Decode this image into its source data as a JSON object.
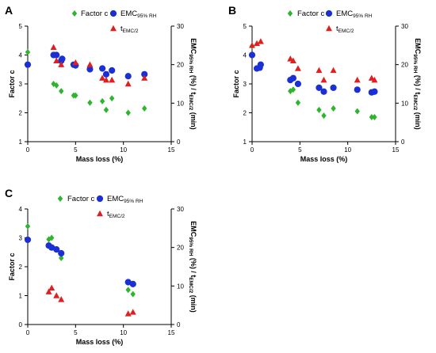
{
  "chart_data": [
    {
      "type": "scatter",
      "panel_label": "A",
      "xlabel": "Mass loss (%)",
      "ylabel_left": "Factor c",
      "ylabel_right_parts": [
        "EMC",
        "95% RH",
        " (%) / t",
        "EMC/2",
        " (min)"
      ],
      "xlim": [
        0,
        15
      ],
      "ylim_left": [
        1,
        5
      ],
      "ylim_right": [
        0,
        30
      ],
      "x_ticks": [
        "0",
        "5",
        "10",
        "15"
      ],
      "y_left_ticks": [
        "1",
        "2",
        "3",
        "4",
        "5"
      ],
      "y_right_ticks": [
        "0",
        "10",
        "20",
        "30"
      ],
      "series": [
        {
          "name_parts": [
            "Factor c",
            ""
          ],
          "axis": "left",
          "marker": "diamond",
          "color": "#2db52d",
          "points": [
            [
              0,
              4.1
            ],
            [
              2.7,
              3.0
            ],
            [
              3.0,
              2.95
            ],
            [
              3.5,
              2.75
            ],
            [
              4.8,
              2.6
            ],
            [
              5.0,
              2.6
            ],
            [
              6.5,
              2.35
            ],
            [
              7.8,
              2.4
            ],
            [
              8.2,
              2.1
            ],
            [
              8.8,
              2.5
            ],
            [
              10.5,
              2.0
            ],
            [
              12.2,
              2.15
            ]
          ]
        },
        {
          "name_parts": [
            "EMC",
            "95% RH"
          ],
          "axis": "right",
          "marker": "circle",
          "color": "#1a2fd4",
          "points": [
            [
              0,
              20.0
            ],
            [
              2.7,
              22.5
            ],
            [
              3.0,
              22.5
            ],
            [
              3.5,
              21.0
            ],
            [
              3.6,
              21.5
            ],
            [
              4.8,
              20.0
            ],
            [
              5.0,
              19.8
            ],
            [
              6.5,
              18.8
            ],
            [
              7.8,
              19.0
            ],
            [
              8.2,
              17.5
            ],
            [
              8.8,
              18.5
            ],
            [
              10.5,
              17.0
            ],
            [
              12.2,
              17.5
            ]
          ]
        },
        {
          "name_parts": [
            "t",
            "EMC/2"
          ],
          "axis": "right",
          "marker": "triangle",
          "color": "#e02020",
          "points": [
            [
              2.7,
              24.5
            ],
            [
              3.0,
              21.0
            ],
            [
              3.5,
              20.0
            ],
            [
              5.0,
              20.5
            ],
            [
              6.5,
              20.0
            ],
            [
              7.8,
              16.5
            ],
            [
              8.2,
              16.0
            ],
            [
              8.8,
              16.0
            ],
            [
              10.5,
              15.0
            ],
            [
              12.2,
              16.5
            ]
          ]
        }
      ]
    },
    {
      "type": "scatter",
      "panel_label": "B",
      "xlabel": "Mass loss (%)",
      "ylabel_left": "Factor c",
      "ylabel_right_parts": [
        "EMC",
        "95% RH",
        " (%) / t",
        "EMC/2",
        " (min)"
      ],
      "xlim": [
        0,
        15
      ],
      "ylim_left": [
        1,
        5
      ],
      "ylim_right": [
        0,
        30
      ],
      "x_ticks": [
        "0",
        "5",
        "10",
        "15"
      ],
      "y_left_ticks": [
        "1",
        "2",
        "3",
        "4",
        "5"
      ],
      "y_right_ticks": [
        "0",
        "10",
        "20",
        "30"
      ],
      "series": [
        {
          "name_parts": [
            "Factor c",
            ""
          ],
          "axis": "left",
          "marker": "diamond",
          "color": "#2db52d",
          "points": [
            [
              0,
              4.3
            ],
            [
              4.0,
              2.75
            ],
            [
              4.3,
              2.8
            ],
            [
              4.8,
              2.35
            ],
            [
              7.0,
              2.1
            ],
            [
              7.5,
              1.9
            ],
            [
              8.5,
              2.15
            ],
            [
              11.0,
              2.05
            ],
            [
              12.5,
              1.85
            ],
            [
              12.8,
              1.85
            ]
          ]
        },
        {
          "name_parts": [
            "EMC",
            "95% RH"
          ],
          "axis": "right",
          "marker": "circle",
          "color": "#1a2fd4",
          "points": [
            [
              0,
              22.5
            ],
            [
              0.5,
              19.0
            ],
            [
              0.8,
              19.2
            ],
            [
              0.9,
              20.0
            ],
            [
              4.0,
              16.0
            ],
            [
              4.3,
              16.5
            ],
            [
              4.8,
              15.0
            ],
            [
              7.0,
              14.0
            ],
            [
              7.5,
              13.0
            ],
            [
              8.5,
              14.0
            ],
            [
              11.0,
              13.5
            ],
            [
              12.5,
              12.8
            ],
            [
              12.8,
              13.0
            ]
          ]
        },
        {
          "name_parts": [
            "t",
            "EMC/2"
          ],
          "axis": "right",
          "marker": "triangle",
          "color": "#e02020",
          "points": [
            [
              0,
              25.0
            ],
            [
              0.5,
              25.5
            ],
            [
              0.9,
              26.0
            ],
            [
              4.0,
              21.5
            ],
            [
              4.3,
              21.0
            ],
            [
              4.8,
              19.0
            ],
            [
              7.0,
              18.5
            ],
            [
              7.5,
              16.0
            ],
            [
              8.5,
              18.5
            ],
            [
              11.0,
              16.0
            ],
            [
              12.5,
              16.5
            ],
            [
              12.8,
              16.0
            ]
          ]
        }
      ]
    },
    {
      "type": "scatter",
      "panel_label": "C",
      "xlabel": "Mass loss (%)",
      "ylabel_left": "Factor c",
      "ylabel_right_parts": [
        "EMC",
        "95% RH",
        " (%) / t",
        "EMC/2",
        " (min)"
      ],
      "xlim": [
        0,
        15
      ],
      "ylim_left": [
        0,
        4
      ],
      "ylim_right": [
        0,
        30
      ],
      "x_ticks": [
        "0",
        "5",
        "10",
        "15"
      ],
      "y_left_ticks": [
        "0",
        "1",
        "2",
        "3",
        "4"
      ],
      "y_right_ticks": [
        "0",
        "10",
        "20",
        "30"
      ],
      "series": [
        {
          "name_parts": [
            "Factor c",
            ""
          ],
          "axis": "left",
          "marker": "diamond",
          "color": "#2db52d",
          "points": [
            [
              0,
              3.4
            ],
            [
              2.2,
              2.95
            ],
            [
              2.5,
              3.0
            ],
            [
              3.5,
              2.3
            ],
            [
              10.5,
              1.2
            ],
            [
              11.0,
              1.05
            ]
          ]
        },
        {
          "name_parts": [
            "EMC",
            "95% RH"
          ],
          "axis": "right",
          "marker": "circle",
          "color": "#1a2fd4",
          "points": [
            [
              0,
              22.0
            ],
            [
              2.2,
              20.5
            ],
            [
              2.5,
              20.0
            ],
            [
              3.0,
              19.5
            ],
            [
              3.5,
              18.5
            ],
            [
              10.5,
              11.0
            ],
            [
              11.0,
              10.5
            ]
          ]
        },
        {
          "name_parts": [
            "t",
            "EMC/2"
          ],
          "axis": "right",
          "marker": "triangle",
          "color": "#e02020",
          "points": [
            [
              2.2,
              8.5
            ],
            [
              2.5,
              9.5
            ],
            [
              3.0,
              7.5
            ],
            [
              3.5,
              6.5
            ],
            [
              10.5,
              2.8
            ],
            [
              11.0,
              3.2
            ]
          ]
        }
      ]
    }
  ]
}
